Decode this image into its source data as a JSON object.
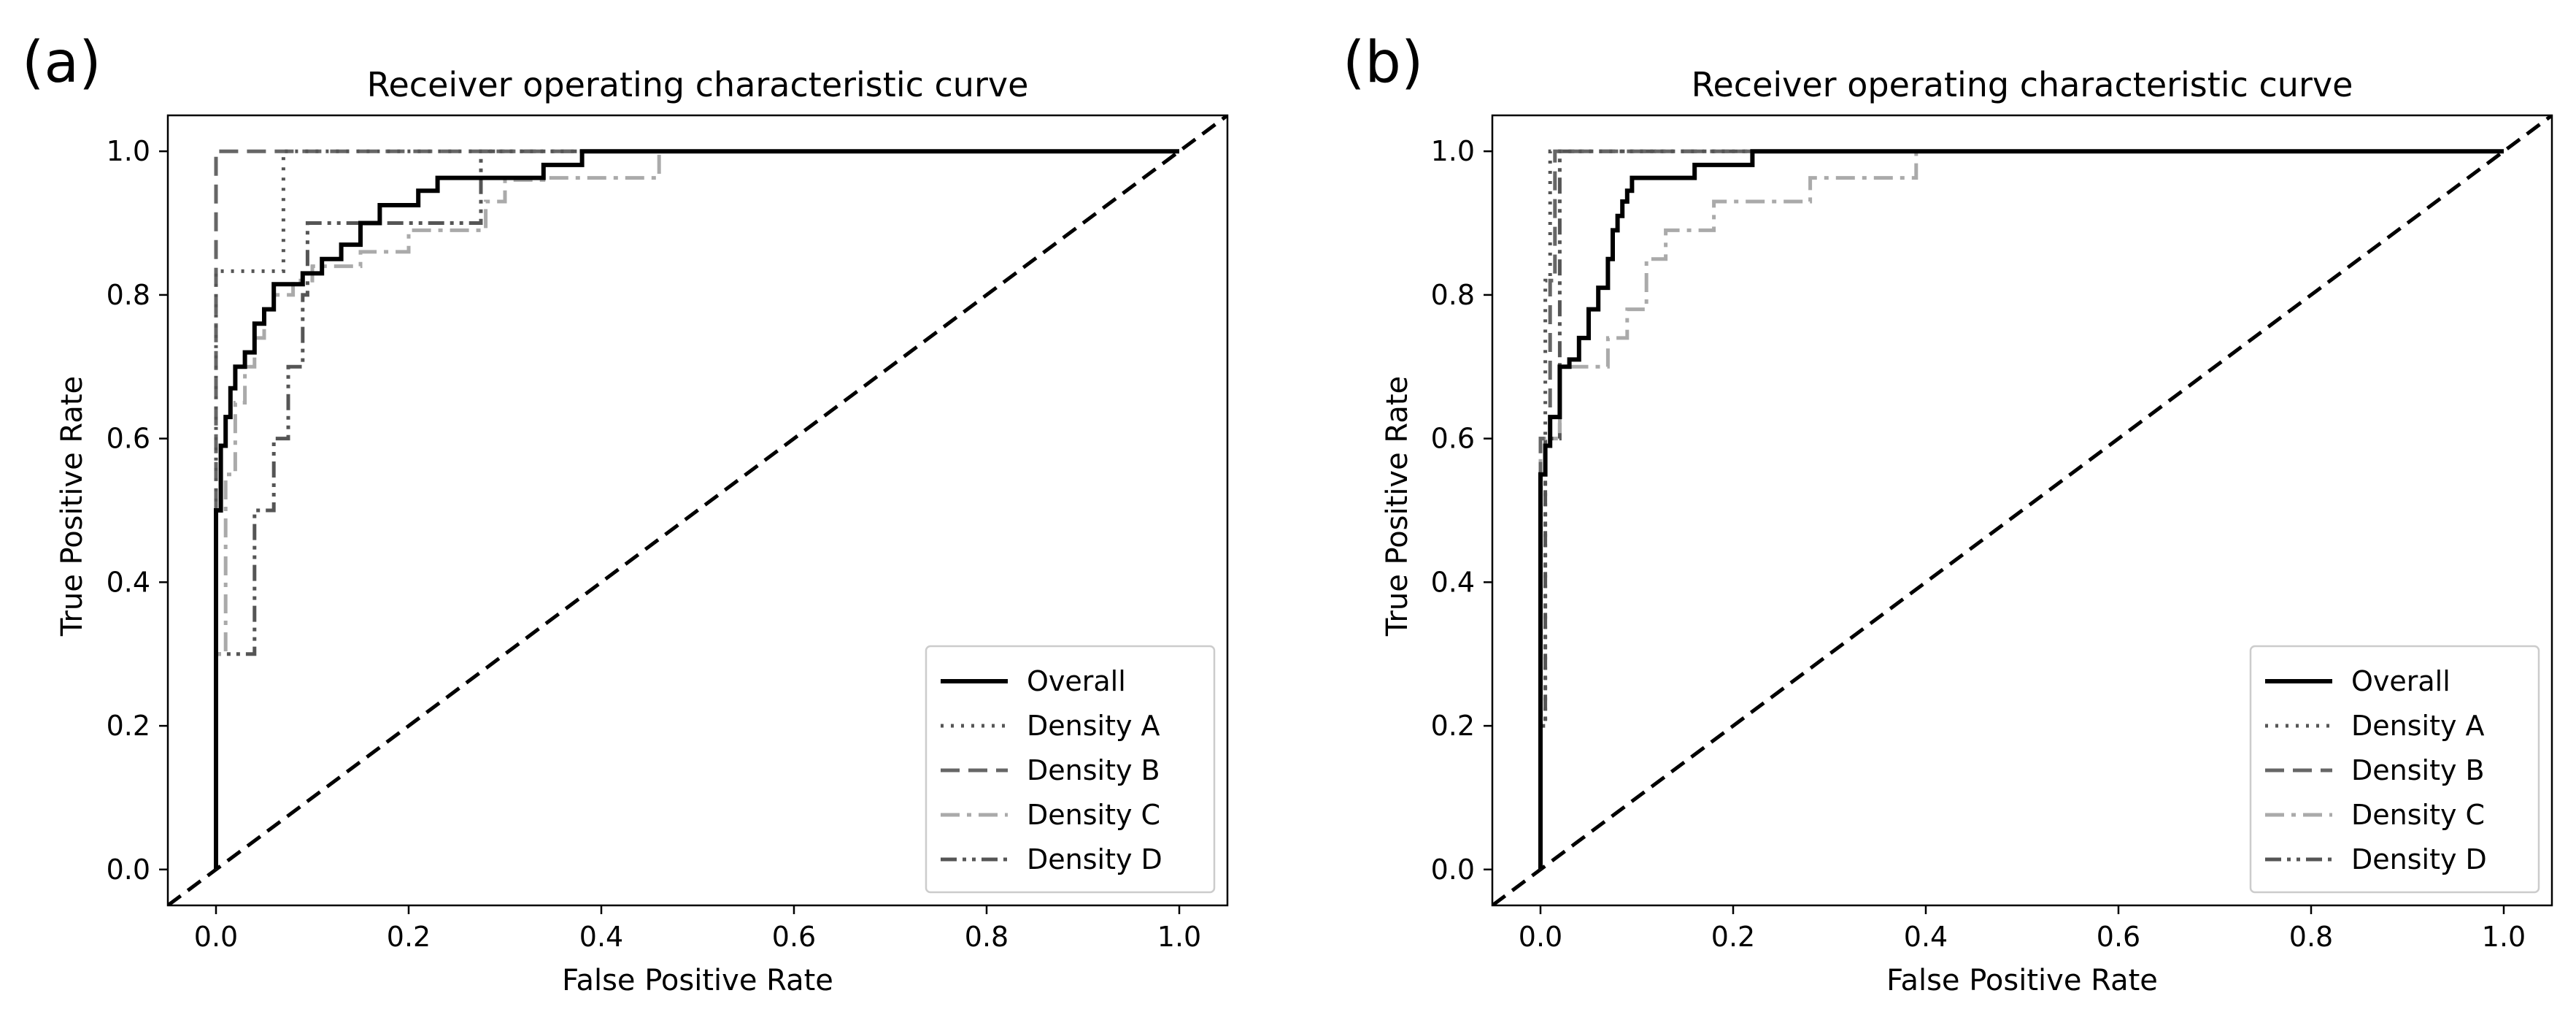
{
  "figure": {
    "panels": [
      "(a)",
      "(b)"
    ]
  },
  "chart_data": [
    {
      "type": "line",
      "panel_label": "(a)",
      "title": "Receiver operating characteristic curve",
      "xlabel": "False Positive Rate",
      "ylabel": "True Positive Rate",
      "xlim": [
        -0.05,
        1.05
      ],
      "ylim": [
        -0.05,
        1.05
      ],
      "xticks": [
        0.0,
        0.2,
        0.4,
        0.6,
        0.8,
        1.0
      ],
      "yticks": [
        0.0,
        0.2,
        0.4,
        0.6,
        0.8,
        1.0
      ],
      "xtick_labels": [
        "0.0",
        "0.2",
        "0.4",
        "0.6",
        "0.8",
        "1.0"
      ],
      "ytick_labels": [
        "0.0",
        "0.2",
        "0.4",
        "0.6",
        "0.8",
        "1.0"
      ],
      "grid": false,
      "legend_position": "bottom-right",
      "diagonal": {
        "style": "dashed",
        "color": "#000000",
        "x": [
          -0.05,
          1.05
        ],
        "y": [
          -0.05,
          1.05
        ]
      },
      "series": [
        {
          "name": "Overall",
          "style": "solid",
          "color": "#000000",
          "x": [
            0,
            0,
            0.005,
            0.005,
            0.01,
            0.01,
            0.015,
            0.015,
            0.02,
            0.02,
            0.03,
            0.03,
            0.04,
            0.04,
            0.05,
            0.05,
            0.06,
            0.06,
            0.09,
            0.09,
            0.11,
            0.11,
            0.13,
            0.13,
            0.15,
            0.15,
            0.17,
            0.17,
            0.21,
            0.21,
            0.23,
            0.23,
            0.34,
            0.34,
            0.38,
            0.38,
            1.0
          ],
          "y": [
            0,
            0.5,
            0.5,
            0.59,
            0.59,
            0.63,
            0.63,
            0.67,
            0.67,
            0.7,
            0.7,
            0.72,
            0.72,
            0.76,
            0.76,
            0.78,
            0.78,
            0.815,
            0.815,
            0.83,
            0.83,
            0.85,
            0.85,
            0.87,
            0.87,
            0.9,
            0.9,
            0.925,
            0.925,
            0.945,
            0.945,
            0.963,
            0.963,
            0.981,
            0.981,
            1.0,
            1.0
          ]
        },
        {
          "name": "Density A",
          "style": "dotted",
          "color": "#555555",
          "x": [
            0,
            0,
            0.07,
            0.07,
            1.0
          ],
          "y": [
            0,
            0.833,
            0.833,
            1.0,
            1.0
          ]
        },
        {
          "name": "Density B",
          "style": "dashed",
          "color": "#666666",
          "x": [
            0,
            0,
            1.0
          ],
          "y": [
            0,
            1.0,
            1.0
          ]
        },
        {
          "name": "Density C",
          "style": "dashdot",
          "color": "#aaaaaa",
          "x": [
            0,
            0,
            0.01,
            0.01,
            0.02,
            0.02,
            0.03,
            0.03,
            0.04,
            0.04,
            0.05,
            0.05,
            0.06,
            0.06,
            0.08,
            0.08,
            0.1,
            0.1,
            0.15,
            0.15,
            0.2,
            0.2,
            0.28,
            0.28,
            0.3,
            0.3,
            0.34,
            0.34,
            0.46,
            0.46,
            1.0
          ],
          "y": [
            0,
            0.3,
            0.3,
            0.55,
            0.55,
            0.65,
            0.65,
            0.7,
            0.7,
            0.74,
            0.74,
            0.78,
            0.78,
            0.8,
            0.8,
            0.82,
            0.82,
            0.84,
            0.84,
            0.86,
            0.86,
            0.89,
            0.89,
            0.93,
            0.93,
            0.96,
            0.96,
            0.963,
            0.963,
            1.0,
            1.0
          ]
        },
        {
          "name": "Density D",
          "style": "dashdotdot",
          "color": "#555555",
          "x": [
            0,
            0,
            0.04,
            0.04,
            0.06,
            0.06,
            0.075,
            0.075,
            0.09,
            0.09,
            0.095,
            0.095,
            0.275,
            0.275,
            1.0
          ],
          "y": [
            0,
            0.3,
            0.3,
            0.5,
            0.5,
            0.6,
            0.6,
            0.7,
            0.7,
            0.8,
            0.8,
            0.9,
            0.9,
            1.0,
            1.0
          ]
        }
      ]
    },
    {
      "type": "line",
      "panel_label": "(b)",
      "title": "Receiver operating characteristic curve",
      "xlabel": "False Positive Rate",
      "ylabel": "True Positive Rate",
      "xlim": [
        -0.05,
        1.05
      ],
      "ylim": [
        -0.05,
        1.05
      ],
      "xticks": [
        0.0,
        0.2,
        0.4,
        0.6,
        0.8,
        1.0
      ],
      "yticks": [
        0.0,
        0.2,
        0.4,
        0.6,
        0.8,
        1.0
      ],
      "xtick_labels": [
        "0.0",
        "0.2",
        "0.4",
        "0.6",
        "0.8",
        "1.0"
      ],
      "ytick_labels": [
        "0.0",
        "0.2",
        "0.4",
        "0.6",
        "0.8",
        "1.0"
      ],
      "grid": false,
      "legend_position": "bottom-right",
      "diagonal": {
        "style": "dashed",
        "color": "#000000",
        "x": [
          -0.05,
          1.05
        ],
        "y": [
          -0.05,
          1.05
        ]
      },
      "series": [
        {
          "name": "Overall",
          "style": "solid",
          "color": "#000000",
          "x": [
            0,
            0,
            0.005,
            0.005,
            0.01,
            0.01,
            0.02,
            0.02,
            0.03,
            0.03,
            0.04,
            0.04,
            0.05,
            0.05,
            0.06,
            0.06,
            0.07,
            0.07,
            0.075,
            0.075,
            0.08,
            0.08,
            0.085,
            0.085,
            0.09,
            0.09,
            0.095,
            0.095,
            0.16,
            0.16,
            0.22,
            0.22,
            0.31,
            0.31,
            1.0
          ],
          "y": [
            0,
            0.55,
            0.55,
            0.59,
            0.59,
            0.63,
            0.63,
            0.7,
            0.7,
            0.71,
            0.71,
            0.74,
            0.74,
            0.78,
            0.78,
            0.81,
            0.81,
            0.85,
            0.85,
            0.89,
            0.89,
            0.91,
            0.91,
            0.93,
            0.93,
            0.945,
            0.945,
            0.963,
            0.963,
            0.981,
            0.981,
            1.0,
            1.0,
            1.0,
            1.0
          ]
        },
        {
          "name": "Density A",
          "style": "dotted",
          "color": "#555555",
          "x": [
            0,
            0,
            0.005,
            0.005,
            0.01,
            0.01,
            1.0
          ],
          "y": [
            0,
            0.2,
            0.2,
            0.82,
            0.82,
            1.0,
            1.0
          ]
        },
        {
          "name": "Density B",
          "style": "dashed",
          "color": "#666666",
          "x": [
            0,
            0,
            0.01,
            0.01,
            0.015,
            0.015,
            1.0
          ],
          "y": [
            0,
            0.6,
            0.6,
            0.82,
            0.82,
            1.0,
            1.0
          ]
        },
        {
          "name": "Density C",
          "style": "dashdot",
          "color": "#aaaaaa",
          "x": [
            0,
            0,
            0.02,
            0.02,
            0.07,
            0.07,
            0.09,
            0.09,
            0.11,
            0.11,
            0.13,
            0.13,
            0.18,
            0.18,
            0.28,
            0.28,
            0.39,
            0.39,
            1.0
          ],
          "y": [
            0,
            0.6,
            0.6,
            0.7,
            0.7,
            0.74,
            0.74,
            0.78,
            0.78,
            0.85,
            0.85,
            0.89,
            0.89,
            0.93,
            0.93,
            0.963,
            0.963,
            1.0,
            1.0
          ]
        },
        {
          "name": "Density D",
          "style": "dashdotdot",
          "color": "#555555",
          "x": [
            0,
            0,
            0.005,
            0.005,
            0.02,
            0.02,
            1.0
          ],
          "y": [
            0,
            0.2,
            0.2,
            0.6,
            0.6,
            1.0,
            1.0
          ]
        }
      ]
    }
  ]
}
